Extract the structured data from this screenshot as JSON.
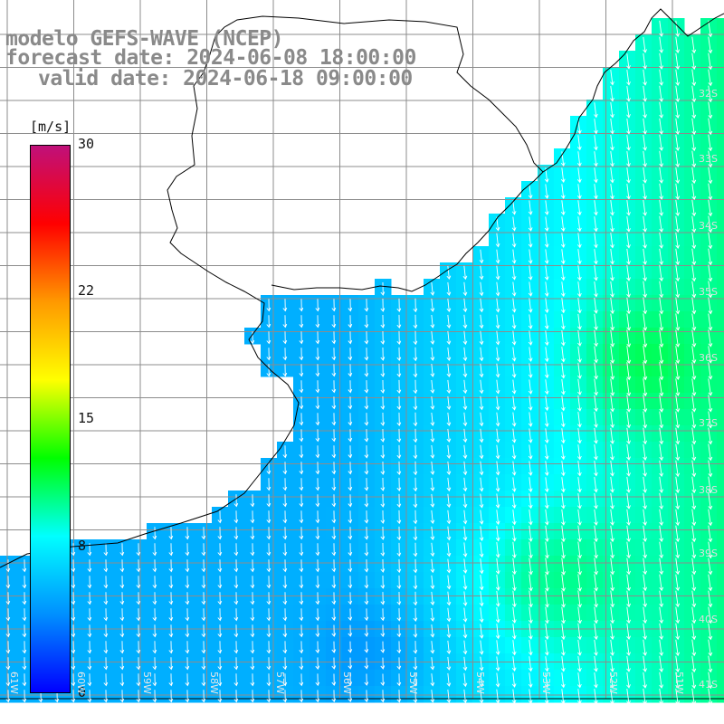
{
  "title": {
    "line1": "modelo GEFS-WAVE (NCEP)",
    "line2": "forecast date: 2024-06-08 18:00:00",
    "line3": "valid date: 2024-06-18 09:00:00"
  },
  "colorbar": {
    "unit": "[m/s]",
    "ticks": [
      "30",
      "22",
      "15",
      "8",
      "0"
    ],
    "tick_values": [
      30,
      22,
      15,
      8,
      0
    ],
    "range": [
      0,
      30
    ],
    "colors": [
      "#0000ff",
      "#0090ff",
      "#00ffff",
      "#00ff00",
      "#ffff00",
      "#ff9900",
      "#ff0000",
      "#c0107a"
    ]
  },
  "map": {
    "variable": "wind speed and direction",
    "lat_labels": [
      "32S",
      "33S",
      "34S",
      "35S",
      "36S",
      "37S",
      "38S",
      "39S",
      "40S",
      "41S"
    ],
    "lon_labels": [
      "61W",
      "60W",
      "59W",
      "58W",
      "57W",
      "56W",
      "55W",
      "54W",
      "53W",
      "52W",
      "51W"
    ],
    "land_color": "#ffffff",
    "grid_color": "#8c8c8c"
  }
}
